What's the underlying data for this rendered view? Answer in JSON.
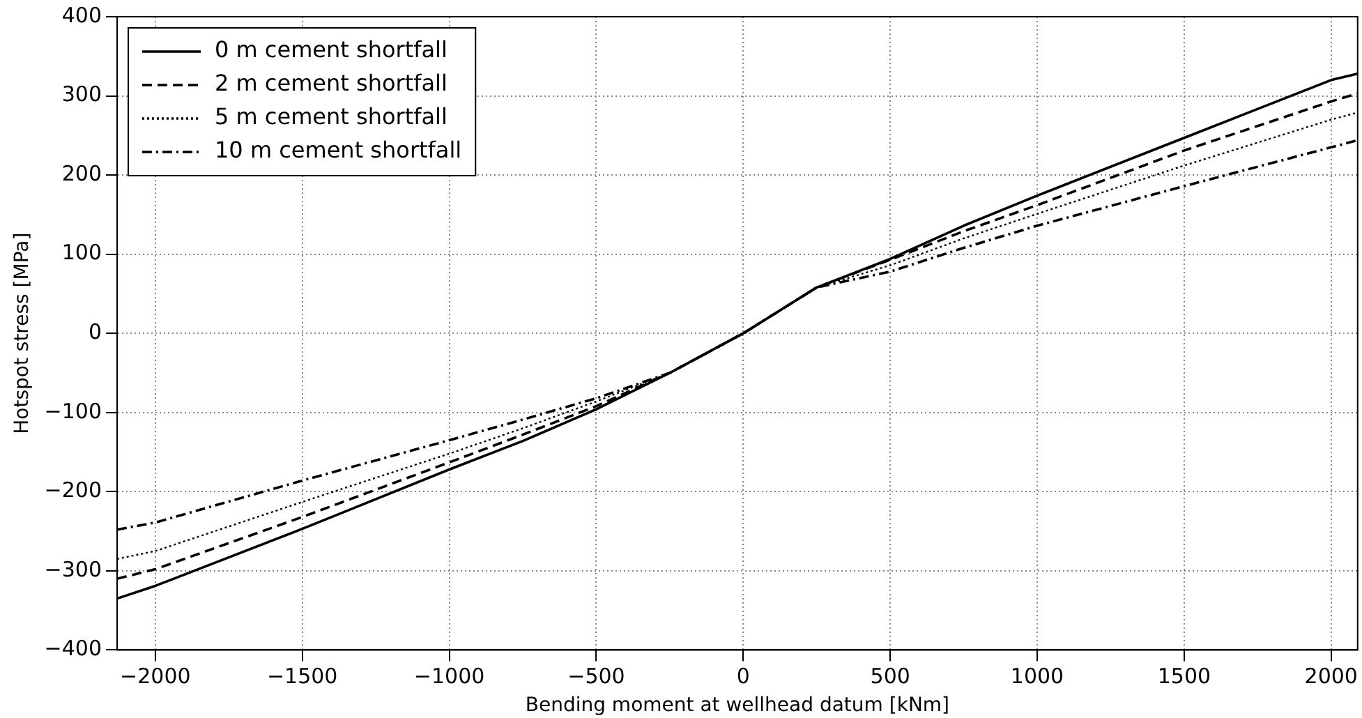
{
  "chart_data": {
    "type": "line",
    "xlabel": "Bending moment at wellhead datum [kNm]",
    "ylabel": "Hotspot stress [MPa]",
    "x": [
      -2130,
      -2000,
      -1500,
      -1000,
      -750,
      -500,
      -250,
      0,
      250,
      500,
      750,
      1000,
      1500,
      2000,
      2090
    ],
    "series": [
      {
        "name": "0 m cement shortfall",
        "color": "#000000",
        "line_style": "solid",
        "values": [
          -335,
          -319,
          -247,
          -172,
          -136,
          -96,
          -50,
          0,
          58,
          94,
          136,
          174,
          247,
          320,
          328
        ]
      },
      {
        "name": "2 m cement shortfall",
        "color": "#000000",
        "line_style": "dashed",
        "values": [
          -310,
          -298,
          -232,
          -163,
          -128,
          -92,
          -50,
          0,
          58,
          93,
          129,
          162,
          231,
          293,
          303
        ]
      },
      {
        "name": "5 m cement shortfall",
        "color": "#000000",
        "line_style": "dotted",
        "values": [
          -285,
          -275,
          -213,
          -152,
          -120,
          -86,
          -50,
          0,
          58,
          86,
          120,
          151,
          212,
          270,
          279
        ]
      },
      {
        "name": "10 m cement shortfall",
        "color": "#000000",
        "line_style": "dashdot",
        "values": [
          -248,
          -239,
          -186,
          -135,
          -109,
          -82,
          -50,
          0,
          58,
          78,
          108,
          136,
          186,
          235,
          244
        ]
      }
    ],
    "xlim": [
      -2130,
      2090
    ],
    "xticks": [
      -2000,
      -1500,
      -1000,
      -500,
      0,
      500,
      1000,
      1500,
      2000
    ],
    "ylim": [
      -400,
      400
    ],
    "yticks": [
      -400,
      -300,
      -200,
      -100,
      0,
      100,
      200,
      300,
      400
    ],
    "grid": true,
    "legend": "top left",
    "marker": "none"
  }
}
